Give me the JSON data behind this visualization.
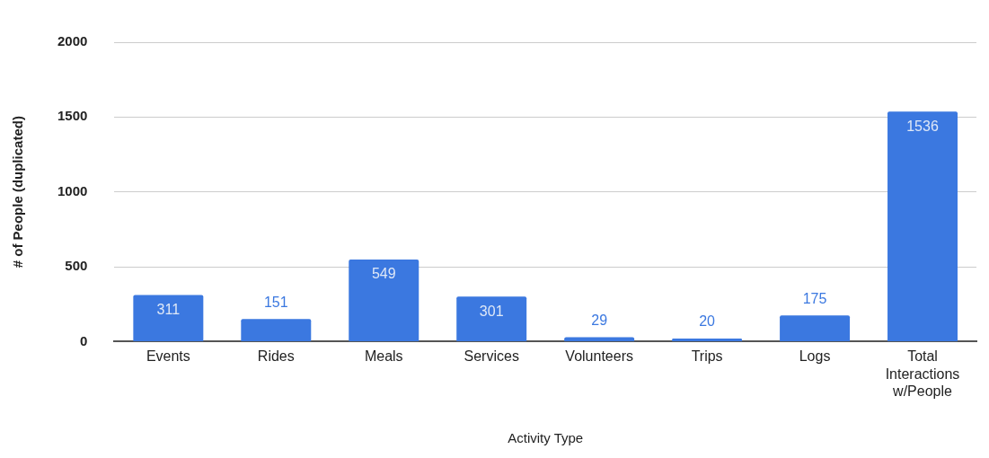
{
  "chart_data": {
    "type": "bar",
    "xlabel": "Activity Type",
    "ylabel": "# of People (duplicated)",
    "categories": [
      "Events",
      "Rides",
      "Meals",
      "Services",
      "Volunteers",
      "Trips",
      "Logs",
      "Total Interactions w/People"
    ],
    "values": [
      311,
      151,
      549,
      301,
      29,
      20,
      175,
      1536
    ],
    "color": "#3b78e0",
    "ylim": [
      0,
      2000
    ],
    "yticks": [
      0,
      500,
      1000,
      1500,
      2000
    ],
    "grid": "y",
    "data_labels": true,
    "legend": false
  }
}
